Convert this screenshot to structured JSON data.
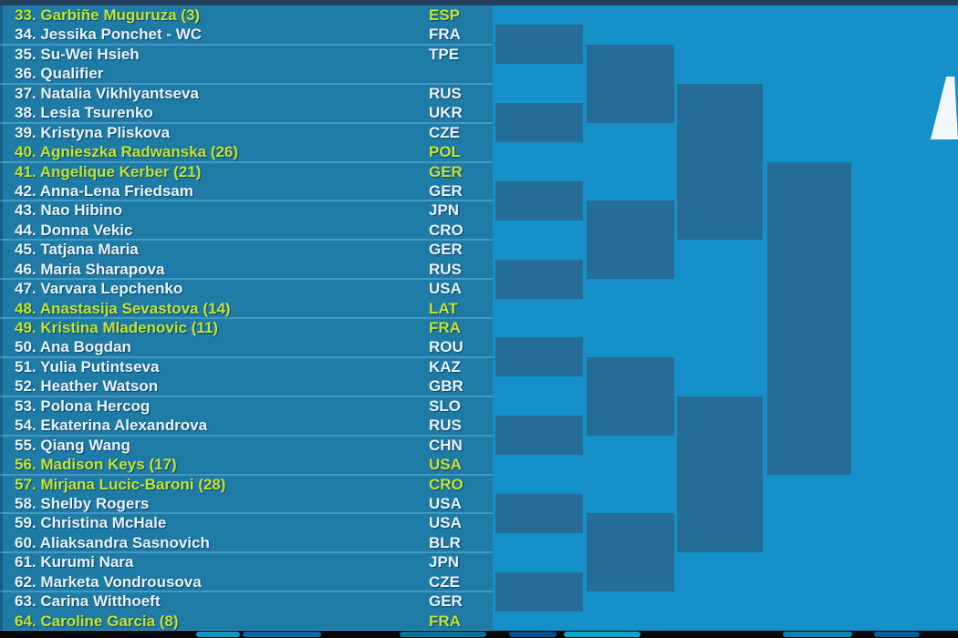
{
  "players": [
    {
      "number": 33,
      "name": "Garbiñe Muguruza",
      "seed": "(3)",
      "country": "ESP",
      "seeded": true
    },
    {
      "number": 34,
      "name": "Jessika Ponchet - WC",
      "seed": "",
      "country": "FRA",
      "seeded": false
    },
    {
      "number": 35,
      "name": "Su-Wei Hsieh",
      "seed": "",
      "country": "TPE",
      "seeded": false
    },
    {
      "number": 36,
      "name": "Qualifier",
      "seed": "",
      "country": "",
      "seeded": false
    },
    {
      "number": 37,
      "name": "Natalia Vikhlyantseva",
      "seed": "",
      "country": "RUS",
      "seeded": false
    },
    {
      "number": 38,
      "name": "Lesia Tsurenko",
      "seed": "",
      "country": "UKR",
      "seeded": false
    },
    {
      "number": 39,
      "name": "Kristyna Pliskova",
      "seed": "",
      "country": "CZE",
      "seeded": false
    },
    {
      "number": 40,
      "name": "Agnieszka Radwanska",
      "seed": "(26)",
      "country": "POL",
      "seeded": true
    },
    {
      "number": 41,
      "name": "Angelique Kerber",
      "seed": "(21)",
      "country": "GER",
      "seeded": true
    },
    {
      "number": 42,
      "name": "Anna-Lena Friedsam",
      "seed": "",
      "country": "GER",
      "seeded": false
    },
    {
      "number": 43,
      "name": "Nao Hibino",
      "seed": "",
      "country": "JPN",
      "seeded": false
    },
    {
      "number": 44,
      "name": "Donna Vekic",
      "seed": "",
      "country": "CRO",
      "seeded": false
    },
    {
      "number": 45,
      "name": "Tatjana Maria",
      "seed": "",
      "country": "GER",
      "seeded": false
    },
    {
      "number": 46,
      "name": "Maria Sharapova",
      "seed": "",
      "country": "RUS",
      "seeded": false
    },
    {
      "number": 47,
      "name": "Varvara Lepchenko",
      "seed": "",
      "country": "USA",
      "seeded": false
    },
    {
      "number": 48,
      "name": "Anastasija Sevastova",
      "seed": "(14)",
      "country": "LAT",
      "seeded": true
    },
    {
      "number": 49,
      "name": "Kristina Mladenovic",
      "seed": "(11)",
      "country": "FRA",
      "seeded": true
    },
    {
      "number": 50,
      "name": "Ana Bogdan",
      "seed": "",
      "country": "ROU",
      "seeded": false
    },
    {
      "number": 51,
      "name": "Yulia Putintseva",
      "seed": "",
      "country": "KAZ",
      "seeded": false
    },
    {
      "number": 52,
      "name": "Heather Watson",
      "seed": "",
      "country": "GBR",
      "seeded": false
    },
    {
      "number": 53,
      "name": "Polona Hercog",
      "seed": "",
      "country": "SLO",
      "seeded": false
    },
    {
      "number": 54,
      "name": "Ekaterina Alexandrova",
      "seed": "",
      "country": "RUS",
      "seeded": false
    },
    {
      "number": 55,
      "name": "Qiang Wang",
      "seed": "",
      "country": "CHN",
      "seeded": false
    },
    {
      "number": 56,
      "name": "Madison Keys",
      "seed": "(17)",
      "country": "USA",
      "seeded": true
    },
    {
      "number": 57,
      "name": "Mirjana Lucic-Baroni",
      "seed": "(28)",
      "country": "CRO",
      "seeded": true
    },
    {
      "number": 58,
      "name": "Shelby Rogers",
      "seed": "",
      "country": "USA",
      "seeded": false
    },
    {
      "number": 59,
      "name": "Christina McHale",
      "seed": "",
      "country": "USA",
      "seeded": false
    },
    {
      "number": 60,
      "name": "Aliaksandra Sasnovich",
      "seed": "",
      "country": "BLR",
      "seeded": false
    },
    {
      "number": 61,
      "name": "Kurumi Nara",
      "seed": "",
      "country": "JPN",
      "seeded": false
    },
    {
      "number": 62,
      "name": "Marketa Vondrousova",
      "seed": "",
      "country": "CZE",
      "seeded": false
    },
    {
      "number": 63,
      "name": "Carina Witthoeft",
      "seed": "",
      "country": "GER",
      "seeded": false
    },
    {
      "number": 64,
      "name": "Caroline Garcia",
      "seed": "(8)",
      "country": "FRA",
      "seeded": true
    }
  ],
  "bracket": {
    "rounds": [
      8,
      4,
      2,
      1
    ]
  },
  "colors": {
    "seeded_text": "#c3e431",
    "player_text": "#e8f4fa",
    "list_bg": "#1e7ba6",
    "bracket_bg": "#1590c9",
    "bracket_box": "#256d96",
    "top_strip": "#24405e",
    "separator": "rgba(125,205,240,0.38)"
  }
}
